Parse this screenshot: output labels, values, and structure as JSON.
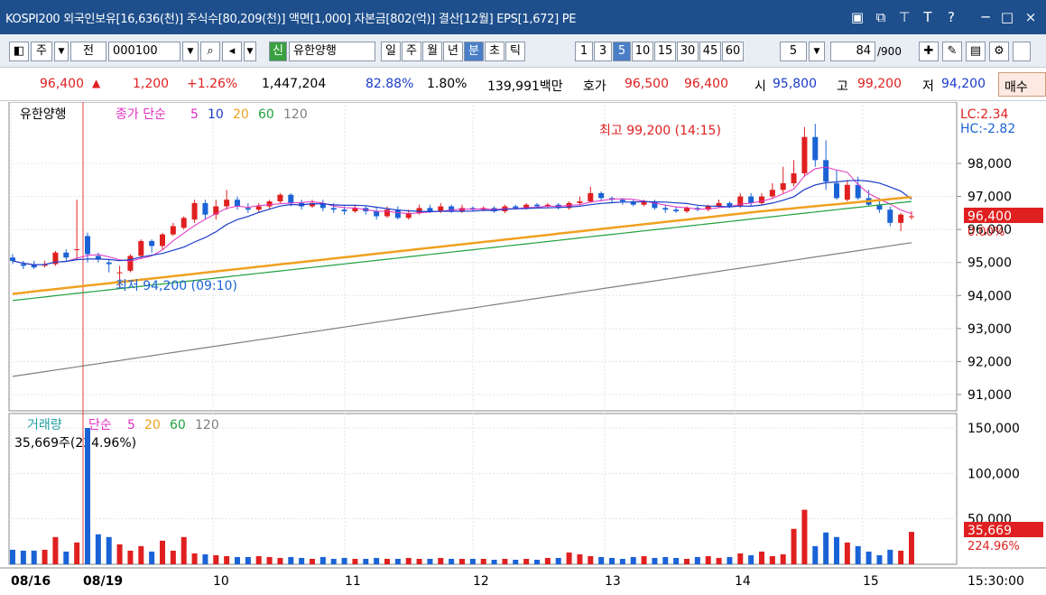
{
  "title_bar": {
    "text": "KOSPI200 외국인보유[16,636(천)] 주식수[80,209(천)] 액면[1,000] 자본금[802(억)] 결산[12월] EPS[1,672] PE"
  },
  "toolbar": {
    "mode": "주",
    "type": "전",
    "code": "000100",
    "name": "유한양행",
    "badge": "신",
    "periods": [
      "일",
      "주",
      "월",
      "년",
      "분",
      "초",
      "틱"
    ],
    "period_selected": "분",
    "intervals": [
      "1",
      "3",
      "5",
      "10",
      "15",
      "30",
      "45",
      "60"
    ],
    "interval_selected": "5",
    "count_select": "5",
    "count": "84",
    "count_total": "/900"
  },
  "quote": {
    "price": "96,400",
    "arrow": "▲",
    "change": "1,200",
    "change_pct": "+1.26%",
    "volume": "1,447,204",
    "ratio": "82.88%",
    "foreign": "1.80%",
    "amount": "139,991백만",
    "ask_label": "호가",
    "ask": "96,500",
    "bid": "96,400",
    "open_label": "시",
    "open": "95,800",
    "high_label": "고",
    "high": "99,200",
    "low_label": "저",
    "low": "94,200",
    "buy_label": "매수"
  },
  "chart": {
    "legend_stock": "유한양행",
    "legend_ma": "종가 단순",
    "ma_periods": [
      "5",
      "10",
      "20",
      "60",
      "120"
    ],
    "high_marker": "최고 99,200 (14:15)",
    "low_marker": "최저 94,200 (09:10)",
    "lc": "LC:2.34",
    "hc": "HC:-2.82",
    "price_ticks": [
      "98,000",
      "97,000",
      "96,000",
      "95,000",
      "94,000",
      "93,000",
      "92,000",
      "91,000"
    ],
    "current_price": "96,400",
    "current_pct": "0.00%",
    "vol_legend": "거래량",
    "vol_ma": "단순",
    "vol_periods": [
      "5",
      "20",
      "60",
      "120"
    ],
    "vol_info": "35,669주(224.96%)",
    "vol_ticks": [
      "150,000",
      "100,000",
      "50,000"
    ],
    "vol_current": "35,669",
    "vol_current_pct": "224.96%",
    "x_labels": [
      "08/16",
      "08/19",
      "10",
      "11",
      "12",
      "13",
      "14",
      "15"
    ],
    "time_label": "15:30:00"
  },
  "colors": {
    "up": "#e02020",
    "down": "#1a63d6",
    "ma5": "#e030c0",
    "ma10": "#1a3cc8",
    "ma20": "#f0a020",
    "ma60": "#20a040",
    "ma120": "#808080"
  }
}
